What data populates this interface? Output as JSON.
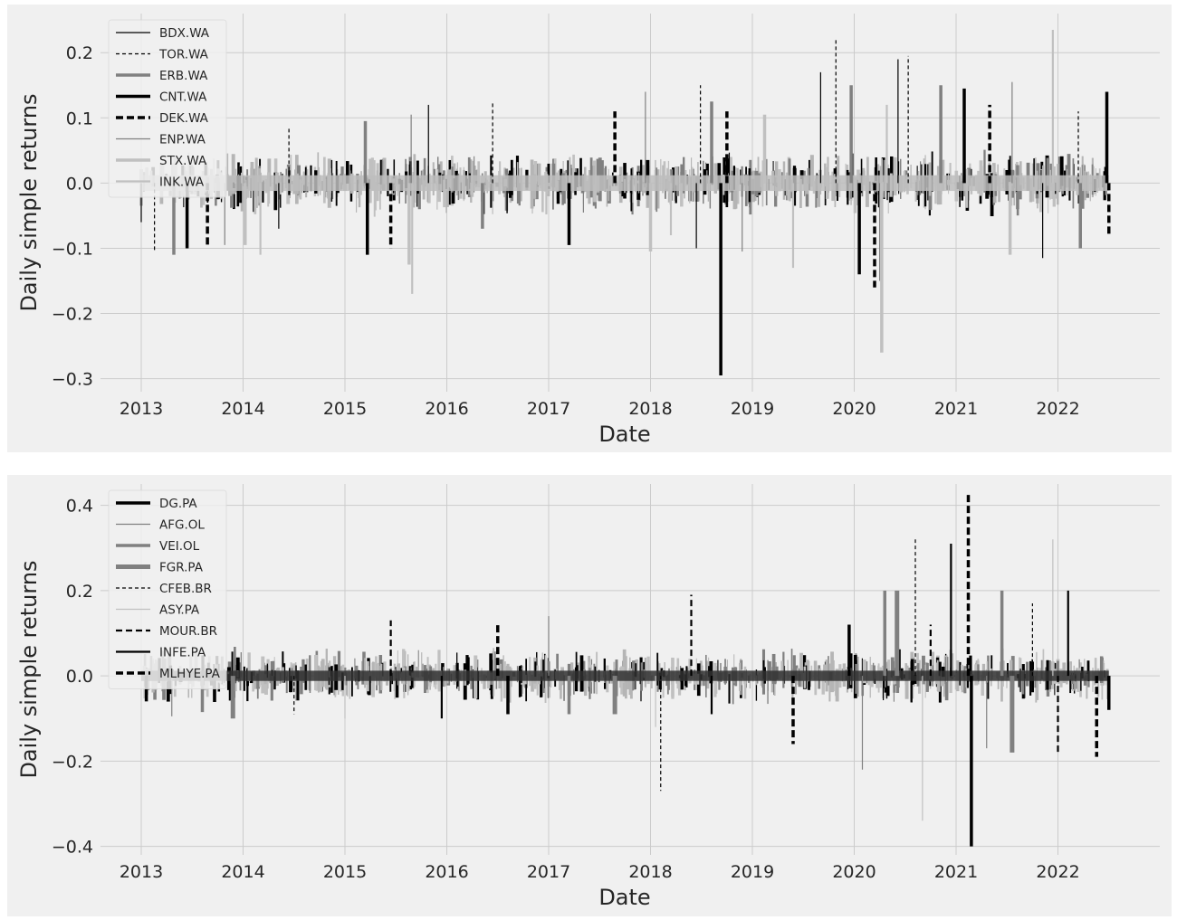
{
  "chart_data": [
    {
      "type": "line",
      "xlabel": "Date",
      "ylabel": "Daily simple returns",
      "x_ticks": [
        "2013",
        "2014",
        "2015",
        "2016",
        "2017",
        "2018",
        "2019",
        "2020",
        "2021",
        "2022"
      ],
      "y_ticks": [
        "0.2",
        "0.1",
        "0.0",
        "−0.1",
        "−0.2",
        "−0.3"
      ],
      "xlim": [
        2012.6,
        2023.0
      ],
      "ylim": [
        -0.32,
        0.26
      ],
      "grid": true,
      "legend_position": "top-left",
      "series": [
        {
          "name": "BDX.WA",
          "color": "#000000",
          "line_style": "solid-thin"
        },
        {
          "name": "TOR.WA",
          "color": "#000000",
          "line_style": "dashed-thin"
        },
        {
          "name": "ERB.WA",
          "color": "#808080",
          "line_style": "solid-thick"
        },
        {
          "name": "CNT.WA",
          "color": "#000000",
          "line_style": "solid-thick"
        },
        {
          "name": "DEK.WA",
          "color": "#000000",
          "line_style": "dashed-thick"
        },
        {
          "name": "ENP.WA",
          "color": "#808080",
          "line_style": "solid-thin"
        },
        {
          "name": "STX.WA",
          "color": "#c0c0c0",
          "line_style": "solid-thick"
        },
        {
          "name": "INK.WA",
          "color": "#c0c0c0",
          "line_style": "solid"
        }
      ],
      "spikes": [
        {
          "x": 2013.0,
          "y": -0.06
        },
        {
          "x": 2013.13,
          "y": -0.105
        },
        {
          "x": 2013.32,
          "y": -0.11
        },
        {
          "x": 2013.45,
          "y": -0.1
        },
        {
          "x": 2013.65,
          "y": -0.095
        },
        {
          "x": 2013.82,
          "y": -0.095
        },
        {
          "x": 2014.02,
          "y": -0.095
        },
        {
          "x": 2014.17,
          "y": -0.11
        },
        {
          "x": 2014.35,
          "y": -0.07
        },
        {
          "x": 2014.45,
          "y": 0.085
        },
        {
          "x": 2015.2,
          "y": 0.095
        },
        {
          "x": 2015.22,
          "y": -0.11
        },
        {
          "x": 2015.45,
          "y": -0.1
        },
        {
          "x": 2015.65,
          "y": 0.105
        },
        {
          "x": 2015.63,
          "y": -0.125
        },
        {
          "x": 2015.66,
          "y": -0.17
        },
        {
          "x": 2015.82,
          "y": 0.12
        },
        {
          "x": 2016.45,
          "y": 0.125
        },
        {
          "x": 2016.35,
          "y": -0.07
        },
        {
          "x": 2017.2,
          "y": -0.095
        },
        {
          "x": 2017.65,
          "y": 0.11
        },
        {
          "x": 2017.95,
          "y": 0.14
        },
        {
          "x": 2018.0,
          "y": -0.105
        },
        {
          "x": 2018.2,
          "y": -0.08
        },
        {
          "x": 2018.45,
          "y": -0.1
        },
        {
          "x": 2018.49,
          "y": 0.15
        },
        {
          "x": 2018.6,
          "y": 0.125
        },
        {
          "x": 2018.69,
          "y": -0.295
        },
        {
          "x": 2018.75,
          "y": 0.11
        },
        {
          "x": 2018.9,
          "y": -0.105
        },
        {
          "x": 2019.12,
          "y": 0.105
        },
        {
          "x": 2019.4,
          "y": -0.13
        },
        {
          "x": 2019.67,
          "y": 0.17
        },
        {
          "x": 2019.82,
          "y": 0.22
        },
        {
          "x": 2019.97,
          "y": 0.15
        },
        {
          "x": 2020.05,
          "y": -0.14
        },
        {
          "x": 2020.2,
          "y": -0.16
        },
        {
          "x": 2020.25,
          "y": -0.15
        },
        {
          "x": 2020.27,
          "y": -0.26
        },
        {
          "x": 2020.32,
          "y": 0.12
        },
        {
          "x": 2020.43,
          "y": 0.19
        },
        {
          "x": 2020.53,
          "y": 0.195
        },
        {
          "x": 2020.85,
          "y": 0.15
        },
        {
          "x": 2021.08,
          "y": 0.145
        },
        {
          "x": 2021.33,
          "y": 0.12
        },
        {
          "x": 2021.55,
          "y": 0.155
        },
        {
          "x": 2021.53,
          "y": -0.11
        },
        {
          "x": 2021.95,
          "y": 0.235
        },
        {
          "x": 2021.85,
          "y": -0.115
        },
        {
          "x": 2022.2,
          "y": 0.11
        },
        {
          "x": 2022.22,
          "y": -0.1
        },
        {
          "x": 2022.48,
          "y": 0.14
        },
        {
          "x": 2022.5,
          "y": -0.08
        }
      ]
    },
    {
      "type": "line",
      "xlabel": "Date",
      "ylabel": "Daily simple returns",
      "x_ticks": [
        "2013",
        "2014",
        "2015",
        "2016",
        "2017",
        "2018",
        "2019",
        "2020",
        "2021",
        "2022"
      ],
      "y_ticks": [
        "0.4",
        "0.2",
        "0.0",
        "−0.2",
        "−0.4"
      ],
      "xlim": [
        2012.6,
        2023.0
      ],
      "ylim": [
        -0.42,
        0.45
      ],
      "grid": true,
      "legend_position": "top-left",
      "series": [
        {
          "name": "DG.PA",
          "color": "#000000",
          "line_style": "solid-thick"
        },
        {
          "name": "AFG.OL",
          "color": "#808080",
          "line_style": "solid-thin"
        },
        {
          "name": "VEI.OL",
          "color": "#808080",
          "line_style": "solid-thick"
        },
        {
          "name": "FGR.PA",
          "color": "#808080",
          "line_style": "solid-thicker"
        },
        {
          "name": "CFEB.BR",
          "color": "#000000",
          "line_style": "dashed-thin"
        },
        {
          "name": "ASY.PA",
          "color": "#c0c0c0",
          "line_style": "solid-thin"
        },
        {
          "name": "MOUR.BR",
          "color": "#000000",
          "line_style": "dashed"
        },
        {
          "name": "INFE.PA",
          "color": "#000000",
          "line_style": "solid"
        },
        {
          "name": "MLHYE.PA",
          "color": "#000000",
          "line_style": "dashed-thick"
        }
      ],
      "spikes": [
        {
          "x": 2013.05,
          "y": -0.06
        },
        {
          "x": 2013.3,
          "y": -0.095
        },
        {
          "x": 2013.6,
          "y": -0.085
        },
        {
          "x": 2013.9,
          "y": -0.1
        },
        {
          "x": 2014.5,
          "y": -0.09
        },
        {
          "x": 2015.0,
          "y": -0.1
        },
        {
          "x": 2015.45,
          "y": 0.13
        },
        {
          "x": 2015.95,
          "y": -0.1
        },
        {
          "x": 2016.5,
          "y": 0.12
        },
        {
          "x": 2016.6,
          "y": -0.09
        },
        {
          "x": 2017.0,
          "y": 0.14
        },
        {
          "x": 2017.2,
          "y": -0.09
        },
        {
          "x": 2017.65,
          "y": -0.09
        },
        {
          "x": 2018.1,
          "y": -0.27
        },
        {
          "x": 2018.05,
          "y": -0.12
        },
        {
          "x": 2018.4,
          "y": 0.19
        },
        {
          "x": 2018.6,
          "y": -0.09
        },
        {
          "x": 2019.4,
          "y": -0.16
        },
        {
          "x": 2019.95,
          "y": 0.12
        },
        {
          "x": 2020.08,
          "y": -0.22
        },
        {
          "x": 2020.3,
          "y": 0.2
        },
        {
          "x": 2020.42,
          "y": 0.2
        },
        {
          "x": 2020.6,
          "y": 0.32
        },
        {
          "x": 2020.67,
          "y": -0.34
        },
        {
          "x": 2020.75,
          "y": 0.12
        },
        {
          "x": 2020.95,
          "y": 0.31
        },
        {
          "x": 2021.12,
          "y": 0.43
        },
        {
          "x": 2021.15,
          "y": -0.4
        },
        {
          "x": 2021.3,
          "y": -0.17
        },
        {
          "x": 2021.45,
          "y": 0.2
        },
        {
          "x": 2021.55,
          "y": -0.18
        },
        {
          "x": 2021.75,
          "y": 0.17
        },
        {
          "x": 2021.95,
          "y": 0.32
        },
        {
          "x": 2022.0,
          "y": -0.18
        },
        {
          "x": 2022.1,
          "y": 0.2
        },
        {
          "x": 2022.38,
          "y": -0.19
        },
        {
          "x": 2022.5,
          "y": -0.08
        }
      ]
    }
  ]
}
